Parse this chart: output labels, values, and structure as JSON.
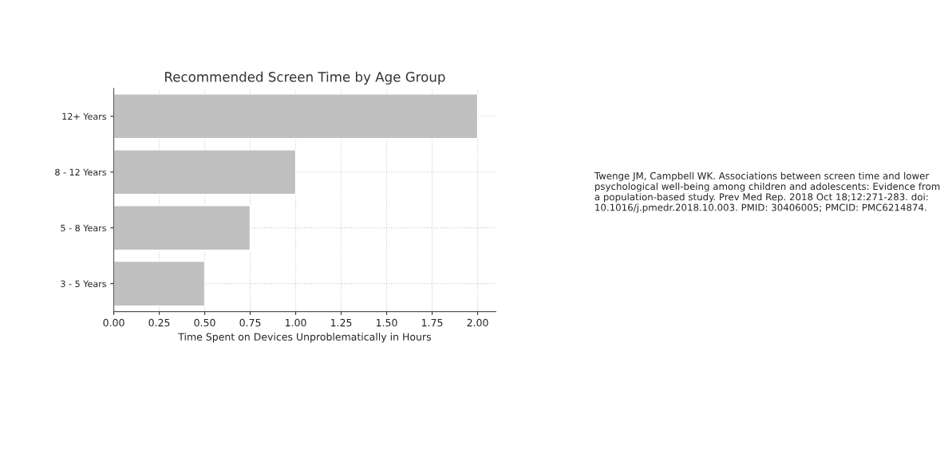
{
  "chart_data": {
    "type": "bar",
    "orientation": "horizontal",
    "title": "Recommended Screen Time by Age Group",
    "xlabel": "Time Spent on Devices Unproblematically in Hours",
    "categories": [
      "12+ Years",
      "8 - 12 Years",
      "5 - 8 Years",
      "3 - 5 Years"
    ],
    "values": [
      2.0,
      1.0,
      0.75,
      0.5
    ],
    "color": "#c0c0c0",
    "xlim": [
      0,
      2.1
    ],
    "xticks": [
      {
        "value": 0,
        "label": "0.00"
      },
      {
        "value": 0.25,
        "label": "0.25"
      },
      {
        "value": 0.5,
        "label": "0.50"
      },
      {
        "value": 0.75,
        "label": "0.75"
      },
      {
        "value": 1.0,
        "label": "1.00"
      },
      {
        "value": 1.25,
        "label": "1.25"
      },
      {
        "value": 1.5,
        "label": "1.50"
      },
      {
        "value": 1.75,
        "label": "1.75"
      },
      {
        "value": 2.0,
        "label": "2.00"
      }
    ],
    "grid": true,
    "line_style": "dotted",
    "annotations": [
      "Twenge JM, Campbell WK. Associations between screen time and lower psychological well-being among children and adolescents: Evidence from a population-based study. Prev Med Rep. 2018 Oct 18;12:271-283. doi: 10.1016/j.pmedr.2018.10.003. PMID: 30406005; PMCID: PMC6214874."
    ]
  }
}
